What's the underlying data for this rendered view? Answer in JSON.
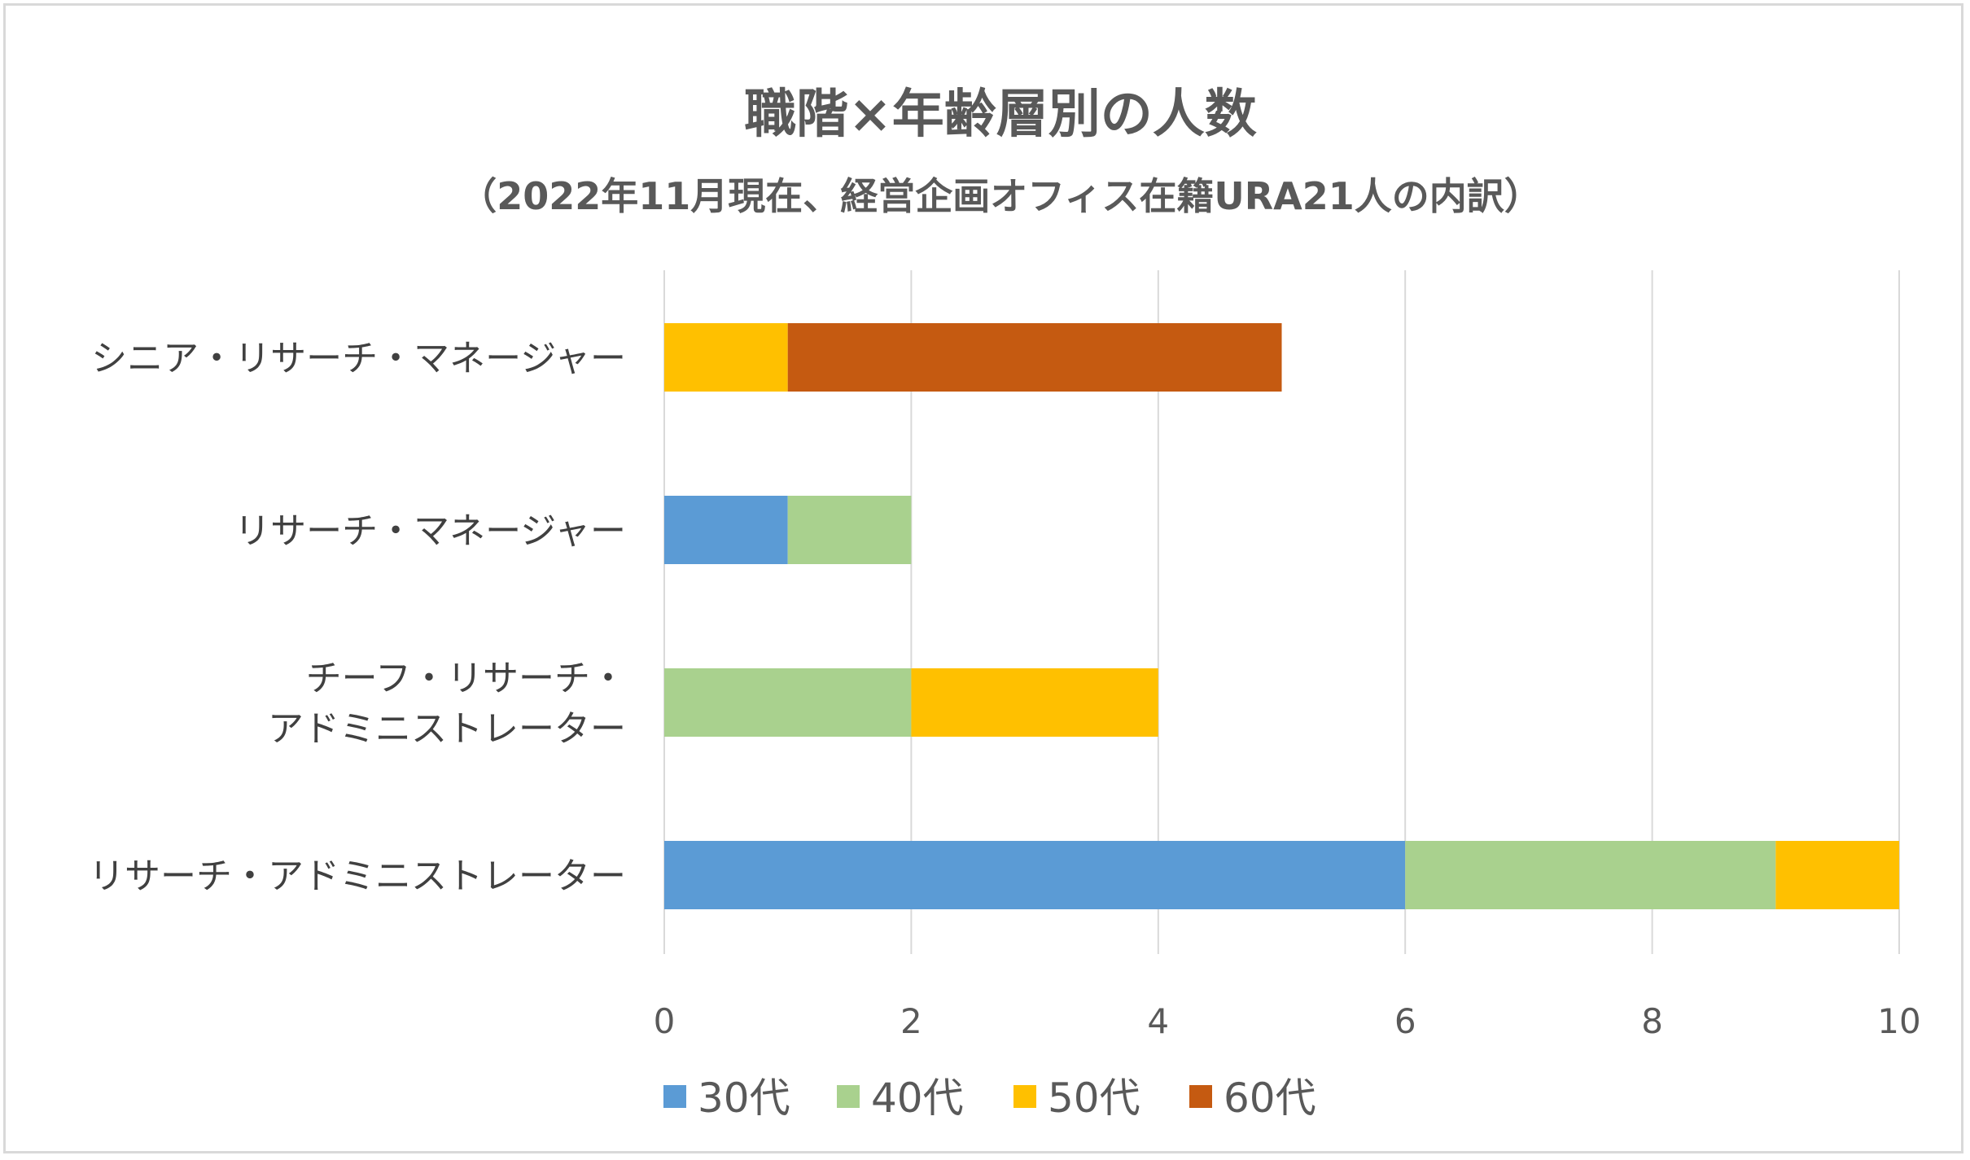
{
  "chart_data": {
    "type": "bar",
    "orientation": "horizontal",
    "stacked": true,
    "title": "職階×年齢層別の人数",
    "subtitle": "（2022年11月現在、経営企画オフィス在籍URA21人の内訳）",
    "xlabel": "",
    "ylabel": "",
    "xlim": [
      0,
      10
    ],
    "xticks": [
      0,
      2,
      4,
      6,
      8,
      10
    ],
    "grid": true,
    "legend_position": "bottom",
    "categories": [
      [
        "シニア・リサーチ・マネージャー"
      ],
      [
        "リサーチ・マネージャー"
      ],
      [
        "チーフ・リサーチ・",
        "アドミニストレーター"
      ],
      [
        "リサーチ・アドミニストレーター"
      ]
    ],
    "series": [
      {
        "name": "30代",
        "color": "#5b9bd5",
        "values": [
          0,
          1,
          0,
          6
        ]
      },
      {
        "name": "40代",
        "color": "#a9d18e",
        "values": [
          0,
          1,
          2,
          3
        ]
      },
      {
        "name": "50代",
        "color": "#ffc000",
        "values": [
          1,
          0,
          2,
          1
        ]
      },
      {
        "name": "60代",
        "color": "#c55a11",
        "values": [
          4,
          0,
          0,
          0
        ]
      }
    ]
  }
}
